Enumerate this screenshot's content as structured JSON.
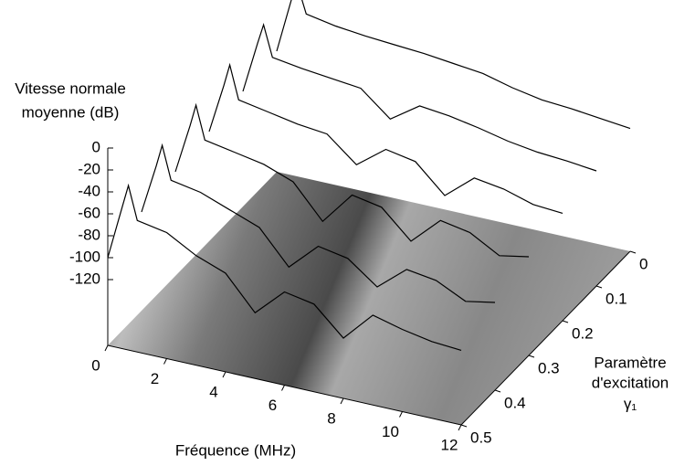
{
  "chart_data": {
    "type": "waterfall3d",
    "xlabel": "Fréquence (MHz)",
    "ylabel": [
      "Paramètre",
      "d'excitation",
      "γ₁"
    ],
    "zlabel": [
      "Vitesse normale",
      "moyenne (dB)"
    ],
    "xlim": [
      0,
      12
    ],
    "xticks": [
      0,
      2,
      4,
      6,
      8,
      10,
      12
    ],
    "ylim": [
      0,
      0.5
    ],
    "yticks": [
      0,
      0.1,
      0.2,
      0.3,
      0.4,
      0.5
    ],
    "zlim": [
      -180,
      0
    ],
    "zticks": [
      0,
      -20,
      -40,
      -60,
      -80,
      -100,
      -120
    ],
    "color": "#000000",
    "x": [
      0,
      0.5,
      0.7,
      1,
      2,
      3,
      4,
      5,
      6,
      7,
      8,
      9,
      10,
      11,
      12
    ],
    "series": [
      {
        "gamma": 0,
        "values": [
          -70,
          -20,
          -5,
          -30,
          -35,
          -38,
          -40,
          -42,
          -45,
          -48,
          -55,
          -60,
          -62,
          -65,
          -68
        ]
      },
      {
        "gamma": 0.1,
        "values": [
          -75,
          -28,
          -10,
          -38,
          -42,
          -45,
          -48,
          -70,
          -52,
          -55,
          -60,
          -66,
          -70,
          -72,
          -75
        ]
      },
      {
        "gamma": 0.2,
        "values": [
          -80,
          -35,
          -15,
          -45,
          -50,
          -55,
          -58,
          -80,
          -60,
          -65,
          -90,
          -68,
          -72,
          -80,
          -82
        ]
      },
      {
        "gamma": 0.3,
        "values": [
          -85,
          -40,
          -20,
          -50,
          -55,
          -60,
          -70,
          -100,
          -70,
          -75,
          -100,
          -75,
          -80,
          -95,
          -90
        ]
      },
      {
        "gamma": 0.4,
        "values": [
          -90,
          -45,
          -25,
          -55,
          -60,
          -70,
          -80,
          -110,
          -85,
          -90,
          -110,
          -88,
          -92,
          -105,
          -100
        ]
      },
      {
        "gamma": 0.5,
        "values": [
          -100,
          -50,
          -30,
          -60,
          -65,
          -80,
          -90,
          -120,
          -95,
          -100,
          -125,
          -98,
          -105,
          -110,
          -112
        ]
      }
    ]
  }
}
